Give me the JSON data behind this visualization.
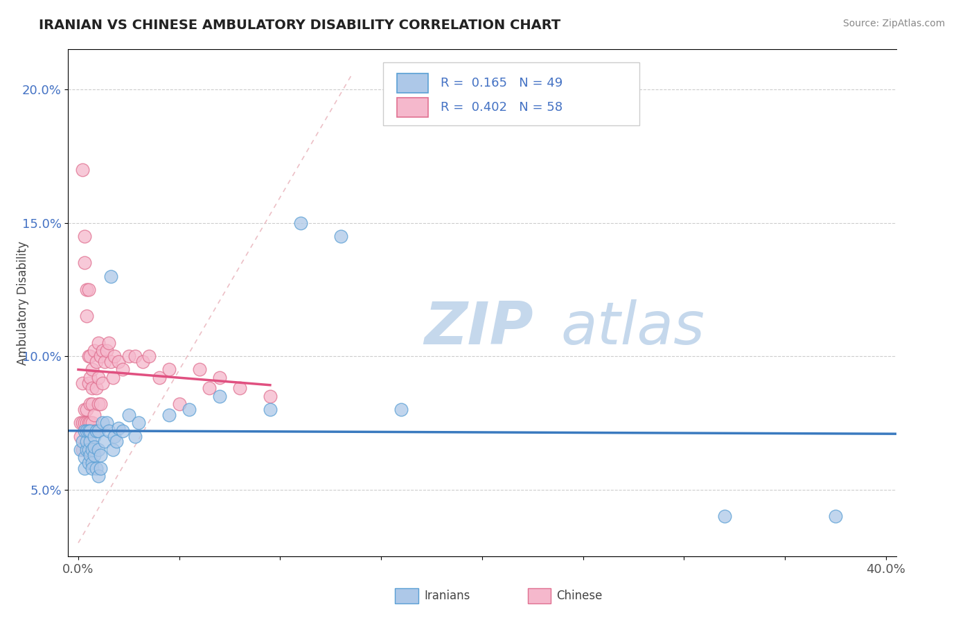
{
  "title": "IRANIAN VS CHINESE AMBULATORY DISABILITY CORRELATION CHART",
  "source": "Source: ZipAtlas.com",
  "ylabel": "Ambulatory Disability",
  "xlim": [
    -0.005,
    0.405
  ],
  "ylim": [
    0.025,
    0.215
  ],
  "x_ticks": [
    0.0,
    0.05,
    0.1,
    0.15,
    0.2,
    0.25,
    0.3,
    0.35,
    0.4
  ],
  "x_tick_labels": [
    "0.0%",
    "",
    "",
    "",
    "",
    "",
    "",
    "",
    "40.0%"
  ],
  "y_ticks": [
    0.05,
    0.1,
    0.15,
    0.2
  ],
  "y_tick_labels": [
    "5.0%",
    "10.0%",
    "15.0%",
    "20.0%"
  ],
  "grid_color": "#cccccc",
  "background_color": "#ffffff",
  "watermark_zip": "ZIP",
  "watermark_atlas": "atlas",
  "watermark_color_zip": "#c5d8ec",
  "watermark_color_atlas": "#c5d8ec",
  "iranians_fill": "#adc8e8",
  "iranians_edge": "#5a9fd4",
  "chinese_fill": "#f5b8cc",
  "chinese_edge": "#e07090",
  "R_iranians": 0.165,
  "N_iranians": 49,
  "R_chinese": 0.402,
  "N_chinese": 58,
  "line_iranians_color": "#3a7abf",
  "line_chinese_color": "#e05080",
  "ref_line_color": "#e8b0b8",
  "iranians_x": [
    0.001,
    0.002,
    0.003,
    0.003,
    0.003,
    0.004,
    0.004,
    0.004,
    0.005,
    0.005,
    0.005,
    0.006,
    0.006,
    0.006,
    0.007,
    0.007,
    0.007,
    0.008,
    0.008,
    0.008,
    0.009,
    0.009,
    0.01,
    0.01,
    0.01,
    0.011,
    0.011,
    0.012,
    0.013,
    0.014,
    0.015,
    0.016,
    0.017,
    0.018,
    0.019,
    0.02,
    0.022,
    0.025,
    0.028,
    0.03,
    0.045,
    0.055,
    0.07,
    0.095,
    0.11,
    0.13,
    0.16,
    0.32,
    0.375
  ],
  "iranians_y": [
    0.065,
    0.068,
    0.062,
    0.058,
    0.072,
    0.065,
    0.068,
    0.072,
    0.06,
    0.065,
    0.072,
    0.063,
    0.068,
    0.072,
    0.06,
    0.065,
    0.058,
    0.063,
    0.07,
    0.066,
    0.058,
    0.072,
    0.072,
    0.055,
    0.065,
    0.063,
    0.058,
    0.075,
    0.068,
    0.075,
    0.072,
    0.13,
    0.065,
    0.07,
    0.068,
    0.073,
    0.072,
    0.078,
    0.07,
    0.075,
    0.078,
    0.08,
    0.085,
    0.08,
    0.15,
    0.145,
    0.08,
    0.04,
    0.04
  ],
  "chinese_x": [
    0.001,
    0.001,
    0.002,
    0.002,
    0.002,
    0.002,
    0.003,
    0.003,
    0.003,
    0.003,
    0.004,
    0.004,
    0.004,
    0.004,
    0.005,
    0.005,
    0.005,
    0.005,
    0.006,
    0.006,
    0.006,
    0.006,
    0.007,
    0.007,
    0.007,
    0.007,
    0.008,
    0.008,
    0.008,
    0.009,
    0.009,
    0.01,
    0.01,
    0.01,
    0.011,
    0.011,
    0.012,
    0.012,
    0.013,
    0.014,
    0.015,
    0.016,
    0.017,
    0.018,
    0.02,
    0.022,
    0.025,
    0.028,
    0.032,
    0.035,
    0.04,
    0.045,
    0.05,
    0.06,
    0.065,
    0.07,
    0.08,
    0.095
  ],
  "chinese_y": [
    0.075,
    0.07,
    0.09,
    0.075,
    0.17,
    0.065,
    0.145,
    0.135,
    0.08,
    0.075,
    0.125,
    0.115,
    0.08,
    0.075,
    0.125,
    0.1,
    0.09,
    0.075,
    0.1,
    0.092,
    0.082,
    0.075,
    0.095,
    0.088,
    0.082,
    0.075,
    0.102,
    0.078,
    0.072,
    0.098,
    0.088,
    0.105,
    0.092,
    0.082,
    0.1,
    0.082,
    0.102,
    0.09,
    0.098,
    0.102,
    0.105,
    0.098,
    0.092,
    0.1,
    0.098,
    0.095,
    0.1,
    0.1,
    0.098,
    0.1,
    0.092,
    0.095,
    0.082,
    0.095,
    0.088,
    0.092,
    0.088,
    0.085
  ]
}
